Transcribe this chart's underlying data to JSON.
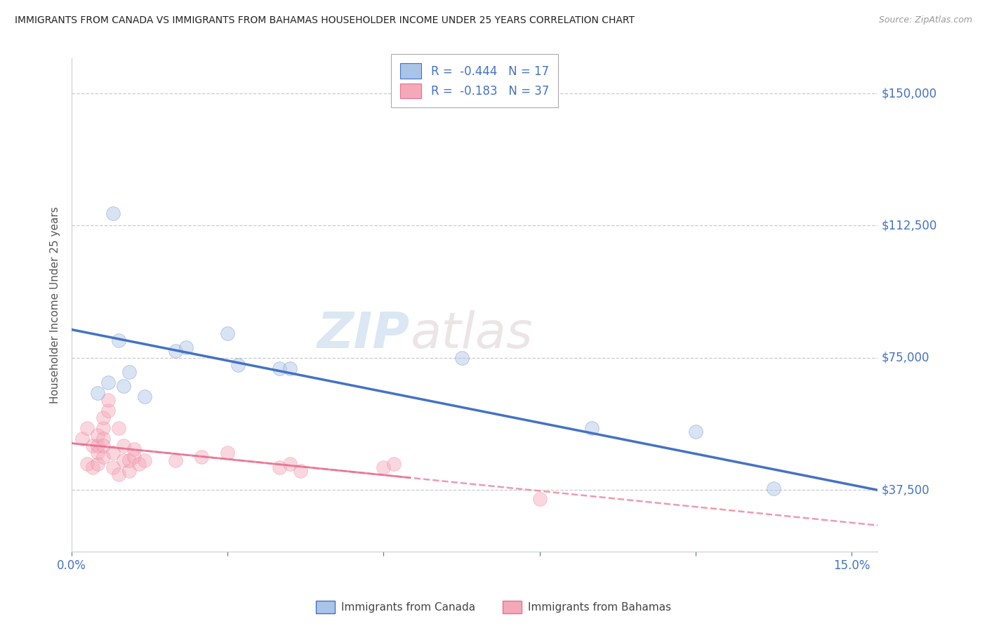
{
  "title": "IMMIGRANTS FROM CANADA VS IMMIGRANTS FROM BAHAMAS HOUSEHOLDER INCOME UNDER 25 YEARS CORRELATION CHART",
  "source": "Source: ZipAtlas.com",
  "ylabel": "Householder Income Under 25 years",
  "xlim": [
    0.0,
    0.155
  ],
  "ylim": [
    20000,
    160000
  ],
  "yticks": [
    37500,
    75000,
    112500,
    150000
  ],
  "ytick_labels": [
    "$37,500",
    "$75,000",
    "$112,500",
    "$150,000"
  ],
  "xticks": [
    0.0,
    0.03,
    0.06,
    0.09,
    0.12,
    0.15
  ],
  "xtick_labels": [
    "0.0%",
    "",
    "",
    "",
    "",
    "15.0%"
  ],
  "canada_R": -0.444,
  "canada_N": 17,
  "bahamas_R": -0.183,
  "bahamas_N": 37,
  "canada_color": "#aac4e8",
  "bahamas_color": "#f5a8b8",
  "canada_line_color": "#4472c4",
  "bahamas_line_color": "#e87090",
  "title_color": "#333333",
  "axis_color": "#4472c4",
  "legend_R_color": "#4472c4",
  "watermark_zip": "ZIP",
  "watermark_atlas": "atlas",
  "grid_color": "#cccccc",
  "background_color": "#ffffff",
  "dot_size": 200,
  "dot_alpha": 0.45,
  "canada_x": [
    0.005,
    0.007,
    0.008,
    0.009,
    0.01,
    0.011,
    0.014,
    0.02,
    0.022,
    0.03,
    0.032,
    0.04,
    0.042,
    0.075,
    0.1,
    0.12,
    0.135
  ],
  "canada_y": [
    65000,
    68000,
    116000,
    80000,
    67000,
    71000,
    64000,
    77000,
    78000,
    82000,
    73000,
    72000,
    72000,
    75000,
    55000,
    54000,
    38000
  ],
  "bahamas_x": [
    0.002,
    0.003,
    0.003,
    0.004,
    0.004,
    0.005,
    0.005,
    0.005,
    0.005,
    0.006,
    0.006,
    0.006,
    0.006,
    0.006,
    0.007,
    0.007,
    0.008,
    0.008,
    0.009,
    0.009,
    0.01,
    0.01,
    0.011,
    0.011,
    0.012,
    0.012,
    0.013,
    0.014,
    0.02,
    0.025,
    0.03,
    0.04,
    0.042,
    0.044,
    0.06,
    0.062,
    0.09
  ],
  "bahamas_y": [
    52000,
    55000,
    45000,
    50000,
    44000,
    45000,
    50000,
    48000,
    53000,
    55000,
    52000,
    47000,
    50000,
    58000,
    60000,
    63000,
    44000,
    48000,
    55000,
    42000,
    46000,
    50000,
    43000,
    46000,
    49000,
    47000,
    45000,
    46000,
    46000,
    47000,
    48000,
    44000,
    45000,
    43000,
    44000,
    45000,
    35000
  ],
  "canada_trend_x0": 0.0,
  "canada_trend_x1": 0.155,
  "canada_trend_y0": 83000,
  "canada_trend_y1": 37500,
  "bahamas_trend_x0": 0.0,
  "bahamas_trend_x1": 0.155,
  "bahamas_trend_y0": 52000,
  "bahamas_trend_y1": 38000
}
